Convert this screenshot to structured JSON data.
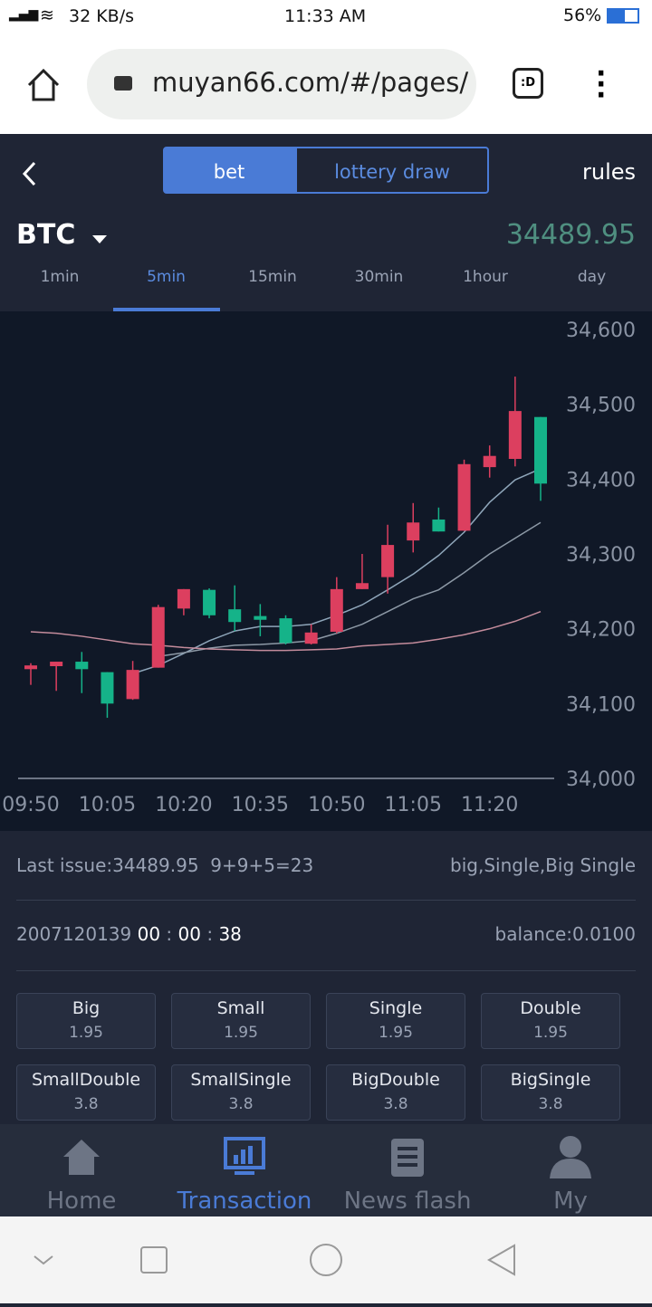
{
  "status_bar": {
    "speed": "32 KB/s",
    "time": "11:33 AM",
    "battery": "56%"
  },
  "browser": {
    "url": "muyan66.com/#/pages/"
  },
  "header": {
    "tabs": [
      "bet",
      "lottery draw"
    ],
    "rules": "rules",
    "symbol": "BTC",
    "price": "34489.95"
  },
  "timeframes": {
    "items": [
      "1min",
      "5min",
      "15min",
      "30min",
      "1hour",
      "day"
    ],
    "active": 1
  },
  "chart_data": {
    "type": "candlestick",
    "categories": [
      "09:50",
      null,
      null,
      "10:05",
      null,
      null,
      "10:20",
      null,
      null,
      "10:35",
      null,
      null,
      "10:50",
      null,
      null,
      "11:05",
      null,
      null,
      "11:20",
      null,
      null
    ],
    "open": [
      34146,
      34150,
      34156,
      34142,
      34106,
      34148,
      34227,
      34252,
      34226,
      34217,
      34214,
      34180,
      34196,
      34253,
      34269,
      34318,
      34346,
      34331,
      34416,
      34427,
      34483
    ],
    "high": [
      34154,
      34156,
      34169,
      34142,
      34157,
      34232,
      34253,
      34254,
      34258,
      34233,
      34218,
      34206,
      34269,
      34300,
      34339,
      34368,
      34362,
      34426,
      34445,
      34537,
      34483
    ],
    "low": [
      34125,
      34117,
      34114,
      34081,
      34105,
      34148,
      34218,
      34214,
      34197,
      34190,
      34179,
      34179,
      34194,
      34253,
      34247,
      34302,
      34330,
      34331,
      34402,
      34417,
      34371
    ],
    "close": [
      34151,
      34156,
      34146,
      34100,
      34145,
      34229,
      34253,
      34218,
      34209,
      34212,
      34181,
      34195,
      34253,
      34261,
      34312,
      34342,
      34330,
      34420,
      34431,
      34491,
      34394
    ],
    "up_color": "#dc3f5f",
    "down_color": "#15b389",
    "lines": [
      {
        "color": "#8fa6ba",
        "values": [
          null,
          null,
          null,
          null,
          34140,
          34151,
          34167,
          34184,
          34197,
          34203,
          34203,
          34206,
          34218,
          34232,
          34252,
          34273,
          34298,
          34329,
          34369,
          34399,
          34414
        ]
      },
      {
        "color": "#8d99a6",
        "values": [
          null,
          null,
          null,
          null,
          null,
          34163,
          34168,
          34174,
          34178,
          34179,
          34181,
          34184,
          34194,
          34206,
          34223,
          34240,
          34252,
          34275,
          34300,
          34321,
          34342
        ]
      },
      {
        "color": "#c48c9c",
        "values": [
          34196,
          34194,
          34190,
          34185,
          34180,
          34178,
          34175,
          34173,
          34172,
          34171,
          34171,
          34172,
          34173,
          34177,
          34179,
          34181,
          34186,
          34192,
          34200,
          34210,
          34223
        ]
      }
    ],
    "ylim": [
      34000,
      34600
    ],
    "yticks": [
      {
        "value": 34000,
        "label": "34,000"
      },
      {
        "value": 34100,
        "label": "34,100"
      },
      {
        "value": 34200,
        "label": "34,200"
      },
      {
        "value": 34300,
        "label": "34,300"
      },
      {
        "value": 34400,
        "label": "34,400"
      },
      {
        "value": 34500,
        "label": "34,500"
      },
      {
        "value": 34600,
        "label": "34,600"
      }
    ]
  },
  "info": {
    "last_issue": "Last issue:34489.95",
    "sum": "9+9+5=23",
    "result": "big,Single,Big Single",
    "issue": "2007120139",
    "countdown": [
      "00",
      "00",
      "38"
    ],
    "separator": ":",
    "balance": "balance:0.0100"
  },
  "bets": [
    {
      "name": "Big",
      "odds": 1.95
    },
    {
      "name": "Small",
      "odds": 1.95
    },
    {
      "name": "Single",
      "odds": 1.95
    },
    {
      "name": "Double",
      "odds": 1.95
    },
    {
      "name": "SmallDouble",
      "odds": 3.8
    },
    {
      "name": "SmallSingle",
      "odds": 3.8
    },
    {
      "name": "BigDouble",
      "odds": 3.8
    },
    {
      "name": "BigSingle",
      "odds": 3.8
    }
  ],
  "nav": {
    "items": [
      "Home",
      "Transaction",
      "News flash",
      "My"
    ],
    "active": 1
  }
}
